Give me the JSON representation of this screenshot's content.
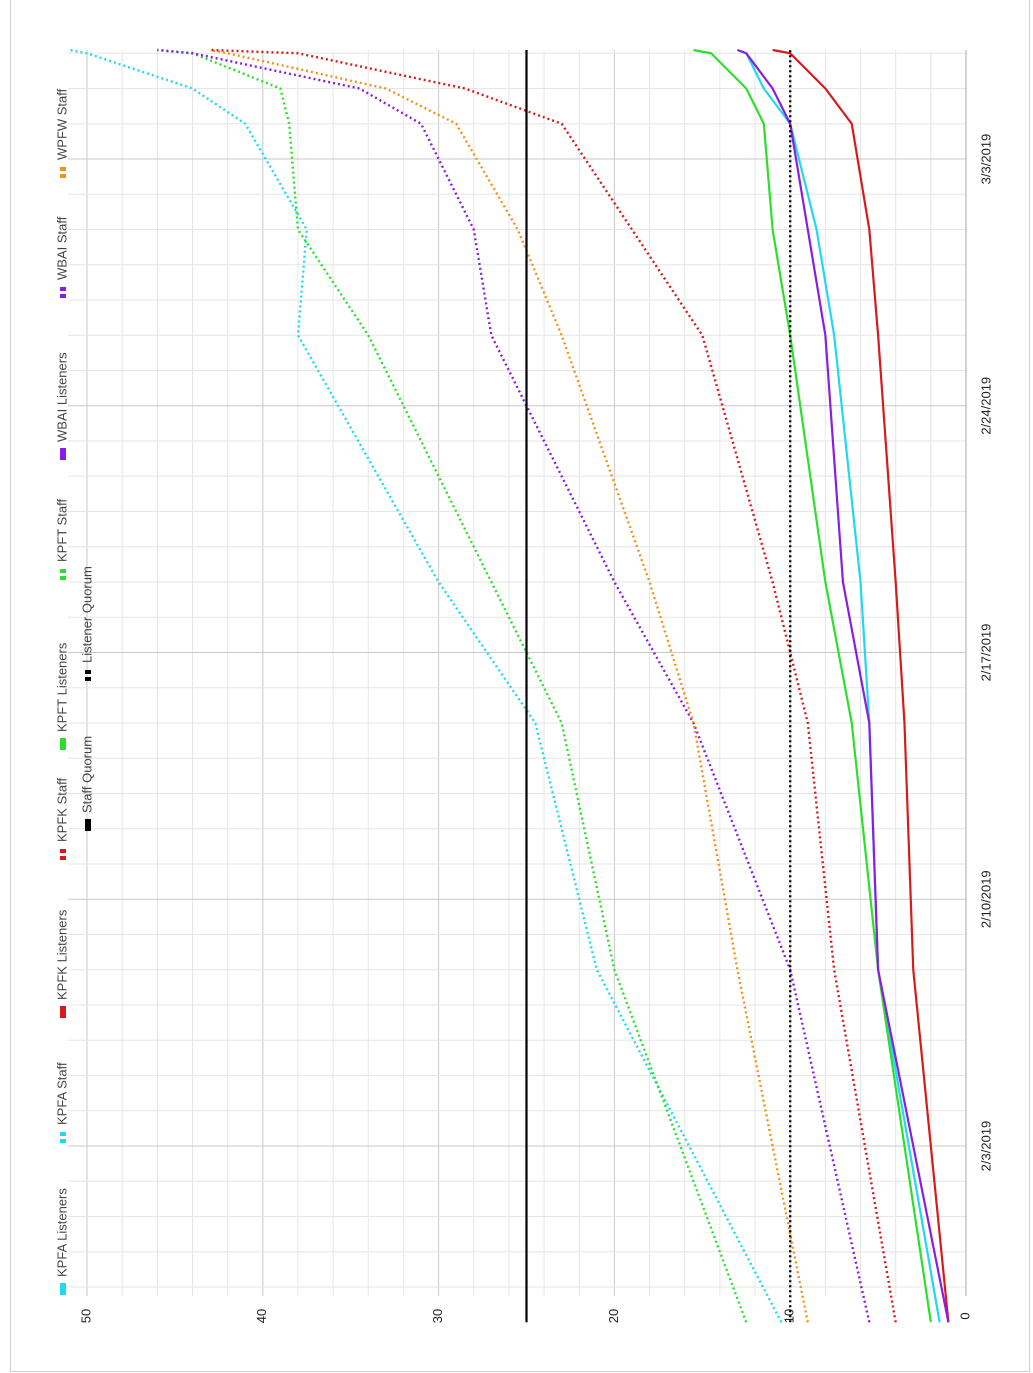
{
  "chart_data": {
    "type": "line",
    "x_dates": [
      "1/29/2019",
      "2/8/2019",
      "2/15/2019",
      "2/19/2019",
      "2/26/2019",
      "3/1/2019",
      "3/4/2019",
      "3/5/2019",
      "3/6/2019",
      "3/7/2019"
    ],
    "x_ticks": [
      "2/3/2019",
      "2/10/2019",
      "2/17/2019",
      "2/24/2019",
      "3/3/2019"
    ],
    "y_ticks": [
      "0",
      "10",
      "20",
      "30",
      "40",
      "50"
    ],
    "ylim": [
      0,
      50
    ],
    "grid": true,
    "legend_position": "top",
    "series": [
      {
        "name": "KPFA Listeners",
        "color": "#22d8ee",
        "style": "solid",
        "values": [
          1.5,
          5,
          5.5,
          6,
          7.5,
          8.5,
          10,
          11.5,
          12.5,
          13
        ]
      },
      {
        "name": "KPFA Staff",
        "color": "#22d8ee",
        "style": "dotted",
        "values": [
          10.5,
          21,
          24.5,
          30,
          38,
          37.5,
          41,
          44,
          50,
          51
        ]
      },
      {
        "name": "KPFK Listeners",
        "color": "#d41c1c",
        "style": "solid",
        "values": [
          1,
          3,
          3.5,
          4,
          5,
          5.5,
          6.5,
          8,
          10,
          11
        ]
      },
      {
        "name": "KPFK Staff",
        "color": "#d41c1c",
        "style": "dotted",
        "values": [
          4,
          7.5,
          9,
          11,
          15,
          19,
          23,
          28.5,
          38,
          43
        ]
      },
      {
        "name": "KPFT Listeners",
        "color": "#2ede2e",
        "style": "solid",
        "values": [
          2,
          5,
          6.5,
          8,
          10,
          11,
          11.5,
          12.5,
          14.5,
          15.5
        ]
      },
      {
        "name": "KPFT Staff",
        "color": "#2ede2e",
        "style": "dotted",
        "values": [
          12.5,
          20,
          23,
          27,
          34,
          38,
          38.5,
          39,
          44,
          46
        ]
      },
      {
        "name": "WBAI Listeners",
        "color": "#8a1ee0",
        "style": "solid",
        "values": [
          1,
          5,
          5.5,
          7,
          8,
          9,
          10,
          11,
          12.5,
          13
        ]
      },
      {
        "name": "WBAI Staff",
        "color": "#8a1ee0",
        "style": "dotted",
        "values": [
          5.5,
          10,
          15.5,
          20,
          27,
          28,
          31,
          34.5,
          44,
          46
        ]
      },
      {
        "name": "WPFW Staff",
        "color": "#f0921e",
        "style": "dotted",
        "values": [
          9,
          13,
          15.5,
          18,
          23,
          25.5,
          29,
          33,
          42,
          43
        ]
      },
      {
        "name": "Staff Quorum",
        "color": "#000000",
        "style": "solid",
        "values": [
          25,
          25,
          25,
          25,
          25,
          25,
          25,
          25,
          25,
          25
        ]
      },
      {
        "name": "Listener Quorum",
        "color": "#000000",
        "style": "dotted",
        "values": [
          10,
          10,
          10,
          10,
          10,
          10,
          10,
          10,
          10,
          10
        ]
      }
    ]
  }
}
